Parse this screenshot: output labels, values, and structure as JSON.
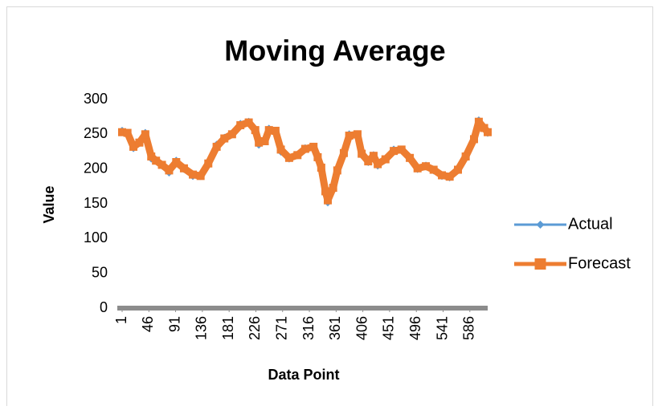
{
  "chart_data": {
    "type": "line",
    "title": "Moving Average",
    "x_label": "Data Point",
    "y_label": "Value",
    "x": [
      1,
      10,
      20,
      30,
      40,
      50,
      58,
      68,
      80,
      92,
      105,
      120,
      133,
      146,
      160,
      173,
      186,
      200,
      214,
      225,
      231,
      241,
      248,
      259,
      268,
      282,
      296,
      309,
      323,
      330,
      336,
      343,
      347,
      356,
      363,
      374,
      383,
      397,
      404,
      415,
      424,
      431,
      444,
      458,
      471,
      485,
      498,
      512,
      525,
      539,
      552,
      566,
      579,
      593,
      601,
      610,
      616
    ],
    "series": [
      {
        "name": "Actual",
        "color": "#5b9bd5",
        "marker": "diamond",
        "values": [
          255,
          252,
          230,
          240,
          252,
          215,
          212,
          205,
          195,
          212,
          200,
          190,
          190,
          210,
          235,
          245,
          250,
          265,
          268,
          255,
          235,
          240,
          258,
          255,
          225,
          215,
          220,
          230,
          232,
          215,
          200,
          165,
          152,
          175,
          200,
          225,
          250,
          250,
          220,
          210,
          220,
          205,
          215,
          228,
          228,
          215,
          200,
          205,
          198,
          190,
          188,
          200,
          220,
          245,
          270,
          258,
          252
        ]
      },
      {
        "name": "Forecast",
        "color": "#ed7d31",
        "marker": "square",
        "values": [
          253,
          252,
          232,
          238,
          250,
          218,
          212,
          206,
          198,
          210,
          201,
          192,
          190,
          208,
          232,
          244,
          250,
          263,
          267,
          256,
          238,
          240,
          256,
          255,
          228,
          216,
          220,
          229,
          232,
          217,
          202,
          168,
          155,
          173,
          198,
          223,
          248,
          250,
          222,
          211,
          219,
          207,
          214,
          226,
          228,
          216,
          201,
          204,
          199,
          191,
          189,
          199,
          218,
          243,
          268,
          259,
          253
        ]
      }
    ],
    "xlim": [
      1,
      616
    ],
    "xticks": [
      1,
      46,
      91,
      136,
      181,
      226,
      271,
      316,
      361,
      406,
      451,
      496,
      541,
      586
    ],
    "ylim": [
      0,
      300
    ],
    "yticks": [
      0,
      50,
      100,
      150,
      200,
      250,
      300
    ],
    "grid": false,
    "legend": "right"
  }
}
